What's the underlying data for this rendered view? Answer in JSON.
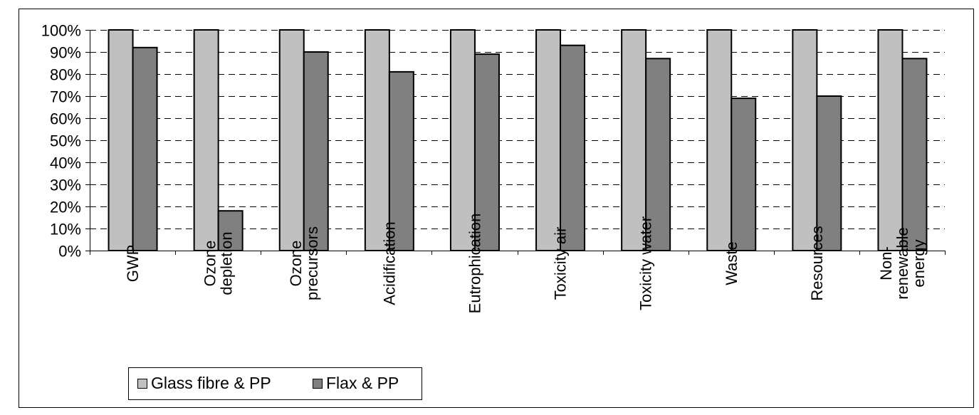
{
  "chart_data": {
    "type": "bar",
    "title": "",
    "xlabel": "",
    "ylabel": "",
    "ylim": [
      0,
      100
    ],
    "y_ticks": [
      0,
      10,
      20,
      30,
      40,
      50,
      60,
      70,
      80,
      90,
      100
    ],
    "y_tick_labels": [
      "0%",
      "10%",
      "20%",
      "30%",
      "40%",
      "50%",
      "60%",
      "70%",
      "80%",
      "90%",
      "100%"
    ],
    "grid": "dashed horizontal",
    "legend_position": "bottom-left",
    "categories": [
      [
        "GWP"
      ],
      [
        "Ozone",
        "depletion"
      ],
      [
        "Ozone",
        "precursors"
      ],
      [
        "Acidification"
      ],
      [
        "Eutrophication"
      ],
      [
        "Toxicity air"
      ],
      [
        "Toxicity water"
      ],
      [
        "Waste"
      ],
      [
        "Resources"
      ],
      [
        "Non-",
        "renewable",
        "energy"
      ]
    ],
    "series": [
      {
        "name": "Glass fibre & PP",
        "color": "#c0c0c0",
        "values": [
          100,
          100,
          100,
          100,
          100,
          100,
          100,
          100,
          100,
          100
        ]
      },
      {
        "name": "Flax & PP",
        "color": "#808080",
        "values": [
          92,
          18,
          90,
          81,
          89,
          93,
          87,
          69,
          70,
          87
        ]
      }
    ]
  }
}
